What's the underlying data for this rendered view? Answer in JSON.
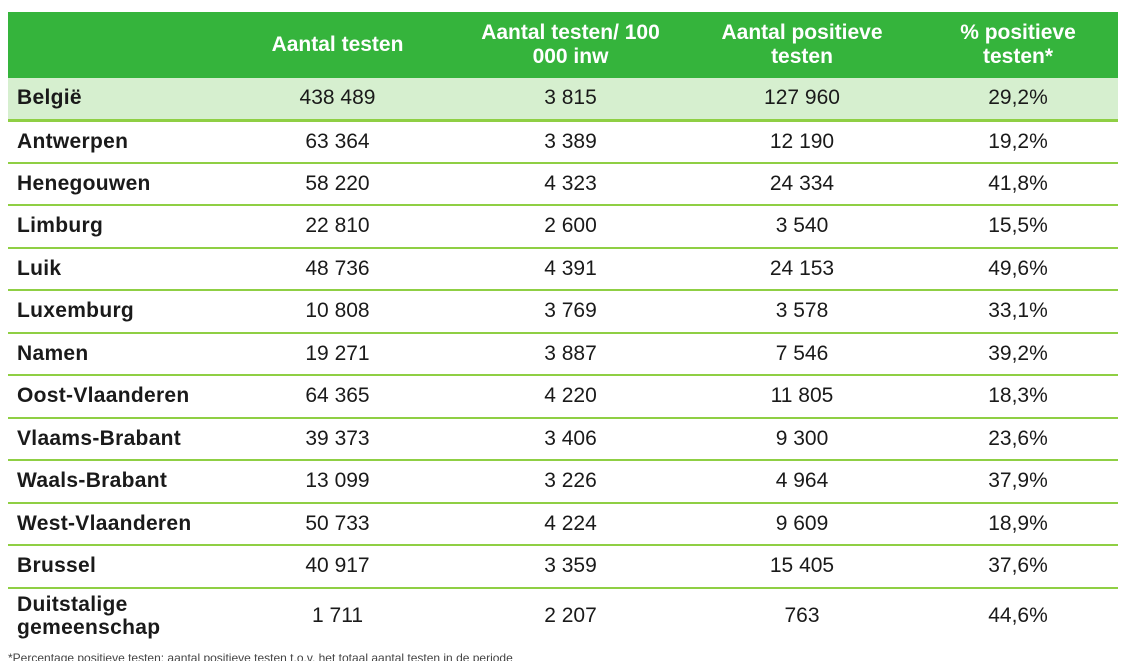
{
  "table": {
    "headers": [
      "",
      "Aantal testen",
      "Aantal testen/ 100 000 inw",
      "Aantal positieve testen",
      "% positieve testen*"
    ],
    "rows": [
      [
        "België",
        "438 489",
        "3 815",
        "127 960",
        "29,2%"
      ],
      [
        "Antwerpen",
        "63 364",
        "3 389",
        "12 190",
        "19,2%"
      ],
      [
        "Henegouwen",
        "58 220",
        "4 323",
        "24 334",
        "41,8%"
      ],
      [
        "Limburg",
        "22 810",
        "2 600",
        "3 540",
        "15,5%"
      ],
      [
        "Luik",
        "48 736",
        "4 391",
        "24 153",
        "49,6%"
      ],
      [
        "Luxemburg",
        "10 808",
        "3 769",
        "3 578",
        "33,1%"
      ],
      [
        "Namen",
        "19 271",
        "3 887",
        "7 546",
        "39,2%"
      ],
      [
        "Oost-Vlaanderen",
        "64 365",
        "4 220",
        "11 805",
        "18,3%"
      ],
      [
        "Vlaams-Brabant",
        "39 373",
        "3 406",
        "9 300",
        "23,6%"
      ],
      [
        "Waals-Brabant",
        "13 099",
        "3 226",
        "4 964",
        "37,9%"
      ],
      [
        "West-Vlaanderen",
        "50 733",
        "4 224",
        "9 609",
        "18,9%"
      ],
      [
        "Brussel",
        "40 917",
        "3 359",
        "15 405",
        "37,6%"
      ],
      [
        "Duitstalige gemeenschap",
        "1 711",
        "2 207",
        "763",
        "44,6%"
      ]
    ]
  },
  "footnote": "*Percentage positieve testen: aantal positieve testen t.o.v. het totaal aantal testen in de periode",
  "colors": {
    "header_bg": "#35b43c",
    "total_row_bg": "#d6efcf",
    "row_border": "#8fcf44"
  }
}
